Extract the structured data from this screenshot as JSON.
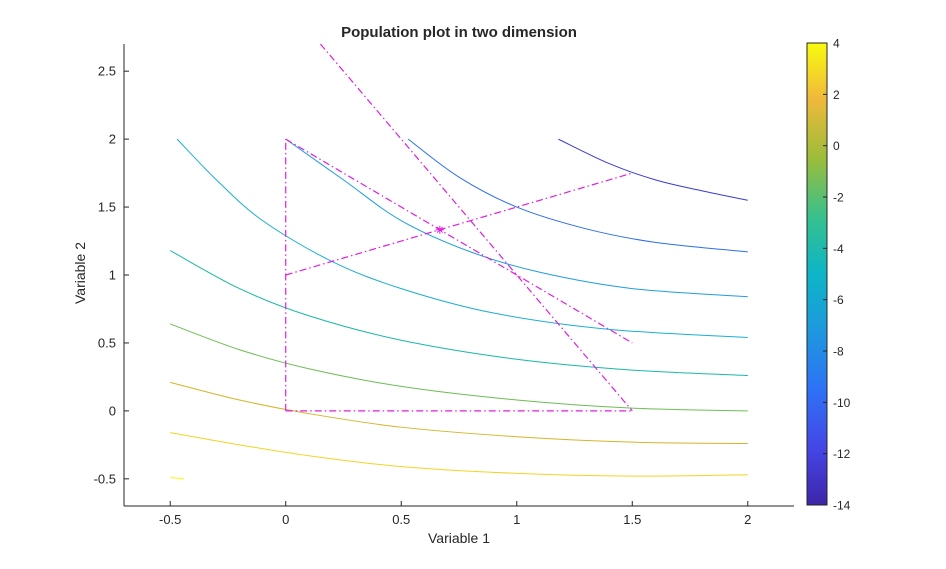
{
  "chart_data": {
    "type": "contour",
    "title": "Population plot in two dimension",
    "xlabel": "Variable  1",
    "ylabel": "Variable  2",
    "xlim": [
      -0.7,
      2.2
    ],
    "ylim": [
      -0.7,
      2.7
    ],
    "xticks": [
      "-0.5",
      "0",
      "0.5",
      "1",
      "1.5",
      "2"
    ],
    "yticks": [
      "-0.5",
      "0",
      "0.5",
      "1",
      "1.5",
      "2",
      "2.5"
    ],
    "colorbar": {
      "range": [
        -14,
        4
      ],
      "ticks": [
        "4",
        "2",
        "0",
        "-2",
        "-4",
        "-6",
        "-8",
        "-10",
        "-12",
        "-14"
      ],
      "colormap": "parula"
    },
    "contours": [
      {
        "level": -12.5,
        "color": "#3a3bd1",
        "points": [
          [
            1.18,
            2.0
          ],
          [
            1.4,
            1.82
          ],
          [
            1.6,
            1.7
          ],
          [
            1.8,
            1.62
          ],
          [
            2.0,
            1.55
          ]
        ]
      },
      {
        "level": -10,
        "color": "#2c6ef0",
        "points": [
          [
            0.53,
            2.0
          ],
          [
            0.75,
            1.72
          ],
          [
            1.0,
            1.5
          ],
          [
            1.3,
            1.34
          ],
          [
            1.6,
            1.24
          ],
          [
            2.0,
            1.17
          ]
        ]
      },
      {
        "level": -7.5,
        "color": "#1f9de0",
        "points": [
          [
            0.0,
            2.0
          ],
          [
            0.25,
            1.7
          ],
          [
            0.5,
            1.4
          ],
          [
            0.8,
            1.17
          ],
          [
            1.1,
            1.02
          ],
          [
            1.5,
            0.9
          ],
          [
            2.0,
            0.84
          ]
        ]
      },
      {
        "level": -7.5,
        "color": "#1aaed3",
        "points": [
          [
            -0.47,
            2.0
          ],
          [
            -0.3,
            1.7
          ],
          [
            -0.1,
            1.4
          ],
          [
            0.2,
            1.1
          ],
          [
            0.5,
            0.9
          ],
          [
            0.9,
            0.72
          ],
          [
            1.4,
            0.6
          ],
          [
            2.0,
            0.54
          ]
        ]
      },
      {
        "level": -5,
        "color": "#18b8a8",
        "points": [
          [
            -0.5,
            1.18
          ],
          [
            -0.2,
            0.9
          ],
          [
            0.1,
            0.7
          ],
          [
            0.5,
            0.52
          ],
          [
            1.0,
            0.38
          ],
          [
            1.5,
            0.3
          ],
          [
            2.0,
            0.26
          ]
        ]
      },
      {
        "level": -2.5,
        "color": "#6cbe54",
        "points": [
          [
            -0.5,
            0.64
          ],
          [
            -0.2,
            0.45
          ],
          [
            0.1,
            0.31
          ],
          [
            0.5,
            0.18
          ],
          [
            1.0,
            0.08
          ],
          [
            1.5,
            0.02
          ],
          [
            2.0,
            0.0
          ]
        ]
      },
      {
        "level": 0,
        "color": "#d6b42a",
        "points": [
          [
            -0.5,
            0.21
          ],
          [
            -0.2,
            0.08
          ],
          [
            0.1,
            -0.02
          ],
          [
            0.5,
            -0.12
          ],
          [
            1.0,
            -0.19
          ],
          [
            1.5,
            -0.23
          ],
          [
            2.0,
            -0.24
          ]
        ]
      },
      {
        "level": 2.5,
        "color": "#f2d424",
        "points": [
          [
            -0.5,
            -0.16
          ],
          [
            -0.2,
            -0.25
          ],
          [
            0.1,
            -0.33
          ],
          [
            0.5,
            -0.41
          ],
          [
            1.0,
            -0.46
          ],
          [
            1.5,
            -0.48
          ],
          [
            2.0,
            -0.47
          ]
        ]
      },
      {
        "level": 4,
        "color": "#f9f80f",
        "points": [
          [
            -0.5,
            -0.49
          ],
          [
            -0.44,
            -0.5
          ]
        ]
      }
    ],
    "overlay_lines": [
      {
        "color": "#e01ee0",
        "style": "dash-dot",
        "points": [
          [
            0.0,
            0.0
          ],
          [
            0.0,
            2.0
          ]
        ]
      },
      {
        "color": "#e01ee0",
        "style": "dash-dot",
        "points": [
          [
            0.0,
            0.0
          ],
          [
            1.5,
            0.0
          ]
        ]
      },
      {
        "color": "#e01ee0",
        "style": "dash-dot",
        "points": [
          [
            0.0,
            2.0
          ],
          [
            1.5,
            0.5
          ]
        ]
      },
      {
        "color": "#e01ee0",
        "style": "dash-dot",
        "points": [
          [
            0.0,
            1.0
          ],
          [
            1.5,
            1.75
          ]
        ]
      },
      {
        "color": "#e01ee0",
        "style": "dash-dot",
        "points": [
          [
            0.15,
            2.7
          ],
          [
            1.5,
            0.0
          ]
        ]
      }
    ],
    "marker": {
      "x": 0.667,
      "y": 1.333,
      "symbol": "*",
      "color": "#e01ee0"
    }
  }
}
